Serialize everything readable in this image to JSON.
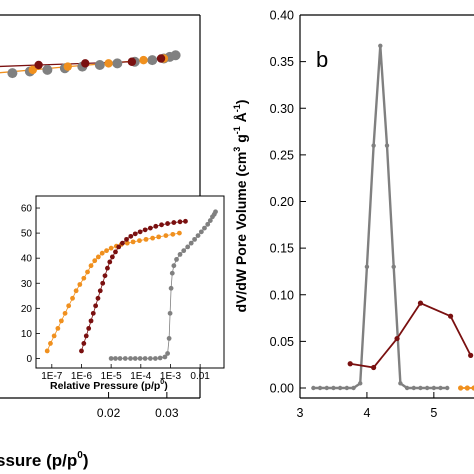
{
  "chart_data": [
    {
      "id": "panel-a",
      "type": "scatter",
      "xlabel": "ssure (p/p",
      "xlabel_sup": "0",
      "xlabel_close": ")",
      "x_ticks": [
        "0.02",
        "0.03"
      ],
      "x_tick_values": [
        0.02,
        0.03
      ],
      "xlim": [
        0.0,
        0.035
      ],
      "series": [
        {
          "color": "#808080",
          "line": false,
          "x": [
            0.0005,
            0.0035,
            0.0065,
            0.0095,
            0.0125,
            0.0155,
            0.0185,
            0.0215,
            0.0245,
            0.0275,
            0.0295,
            0.0305,
            0.0315
          ],
          "y": [
            0.96,
            0.965,
            0.97,
            0.975,
            0.98,
            0.985,
            0.99,
            0.995,
            1.0,
            1.005,
            1.01,
            1.015,
            1.02
          ]
        },
        {
          "color": "#f0901e",
          "line": true,
          "x": [
            0.0005,
            0.007,
            0.013,
            0.02,
            0.026,
            0.0295
          ],
          "y": [
            0.965,
            0.975,
            0.985,
            0.995,
            1.005,
            1.01
          ]
        },
        {
          "color": "#7a1010",
          "line": true,
          "x": [
            0.0005,
            0.008,
            0.016,
            0.024,
            0.029
          ],
          "y": [
            0.985,
            0.99,
            0.995,
            1.0,
            1.01
          ]
        }
      ]
    },
    {
      "id": "panel-a-inset",
      "type": "scatter",
      "xlabel": "Relative Pressure (p/p",
      "xlabel_sup": "0",
      "xlabel_close": ")",
      "x_scale": "log",
      "x_ticks": [
        "1E-7",
        "1E-6",
        "1E-5",
        "1E-4",
        "1E-3",
        "0.01"
      ],
      "x_tick_values": [
        1e-07,
        1e-06,
        1e-05,
        0.0001,
        0.001,
        0.01
      ],
      "xlim": [
        4e-08,
        0.04
      ],
      "y_ticks": [
        "0",
        "10",
        "20",
        "30",
        "40",
        "50",
        "60"
      ],
      "ylim": [
        -3,
        64
      ],
      "series": [
        {
          "color": "#f0901e",
          "x": [
            7e-08,
            9e-08,
            1.2e-07,
            1.6e-07,
            2.1e-07,
            2.8e-07,
            3.7e-07,
            5e-07,
            6.6e-07,
            8.8e-07,
            1.2e-06,
            1.6e-06,
            2.1e-06,
            2.8e-06,
            3.7e-06,
            5e-06,
            7e-06,
            1e-05,
            1.5e-05,
            2.2e-05,
            3.5e-05,
            5.5e-05,
            9e-05,
            0.00015,
            0.00025,
            0.0004,
            0.0007,
            0.0012,
            0.002
          ],
          "y": [
            3,
            6,
            9,
            12,
            15,
            18,
            21,
            24,
            27,
            29.5,
            32,
            34.5,
            37,
            39,
            40.5,
            42,
            43,
            44,
            44.8,
            45.5,
            46,
            46.5,
            47,
            47.5,
            48,
            48.5,
            49,
            49.5,
            50
          ]
        },
        {
          "color": "#7a1010",
          "x": [
            1e-06,
            1.2e-06,
            1.45e-06,
            1.75e-06,
            2.1e-06,
            2.5e-06,
            3e-06,
            3.6e-06,
            4.3e-06,
            5.2e-06,
            6.2e-06,
            7.5e-06,
            9e-06,
            1.1e-05,
            1.4e-05,
            1.8e-05,
            2.4e-05,
            3.3e-05,
            4.6e-05,
            6.5e-05,
            9.5e-05,
            0.00014,
            0.00021,
            0.00032,
            0.0005,
            0.0008,
            0.0013,
            0.0021,
            0.0032
          ],
          "y": [
            3,
            6,
            9,
            12,
            15,
            18,
            21,
            24,
            27,
            30,
            33,
            36,
            38.5,
            40.5,
            42.5,
            44.5,
            46,
            47.5,
            48.7,
            49.7,
            50.5,
            51.3,
            52,
            52.7,
            53.3,
            53.8,
            54.2,
            54.5,
            54.7
          ]
        },
        {
          "color": "#808080",
          "x": [
            1e-05,
            1.4e-05,
            2e-05,
            3e-05,
            4.5e-05,
            6.5e-05,
            9.5e-05,
            0.00014,
            0.00021,
            0.00031,
            0.00045,
            0.00065,
            0.0008,
            0.0009,
            0.00097,
            0.00105,
            0.00115,
            0.0013,
            0.0016,
            0.0021,
            0.0028,
            0.0038,
            0.005,
            0.0065,
            0.0085,
            0.011,
            0.014,
            0.018,
            0.022,
            0.026,
            0.03,
            0.033
          ],
          "y": [
            0,
            0,
            0,
            0,
            0,
            0,
            0,
            0,
            0,
            0,
            0.2,
            0.6,
            2,
            8,
            18,
            28,
            34,
            37,
            39.5,
            41.5,
            43,
            44.5,
            46,
            47.5,
            49,
            50.5,
            52,
            53.5,
            55,
            56.5,
            57.5,
            58.5
          ]
        }
      ]
    },
    {
      "id": "panel-b",
      "type": "line",
      "panel_label": "b",
      "ylabel": "dV/dW Pore Volume (cm",
      "ylabel_sup1": "3",
      "ylabel_mid": " g",
      "ylabel_sup2": "-1",
      "ylabel_mid2": " Å",
      "ylabel_sup3": "-1",
      "ylabel_close": ")",
      "y_ticks": [
        "0.00",
        "0.05",
        "0.10",
        "0.15",
        "0.20",
        "0.25",
        "0.30",
        "0.35",
        "0.40"
      ],
      "ylim": [
        0,
        0.4
      ],
      "x_ticks": [
        "3",
        "4",
        "5"
      ],
      "x_tick_values": [
        3,
        4,
        5
      ],
      "xlim": [
        3,
        5.6
      ],
      "series": [
        {
          "color": "#808080",
          "x": [
            3.2,
            3.3,
            3.4,
            3.5,
            3.6,
            3.7,
            3.8,
            3.9,
            4.0,
            4.1,
            4.2,
            4.3,
            4.4,
            4.5,
            4.6,
            4.7,
            4.8,
            4.9,
            5.0,
            5.1,
            5.2
          ],
          "y": [
            0,
            0,
            0,
            0,
            0,
            0,
            0,
            0.005,
            0.13,
            0.26,
            0.367,
            0.26,
            0.13,
            0.005,
            0,
            0,
            0,
            0,
            0,
            0,
            0
          ]
        },
        {
          "color": "#7a1010",
          "x": [
            3.75,
            4.1,
            4.45,
            4.8,
            5.25,
            5.55
          ],
          "y": [
            0.026,
            0.022,
            0.053,
            0.091,
            0.077,
            0.035
          ]
        },
        {
          "color": "#f0901e",
          "x": [
            5.4,
            5.5,
            5.6
          ],
          "y": [
            0,
            0,
            0
          ]
        }
      ]
    }
  ]
}
